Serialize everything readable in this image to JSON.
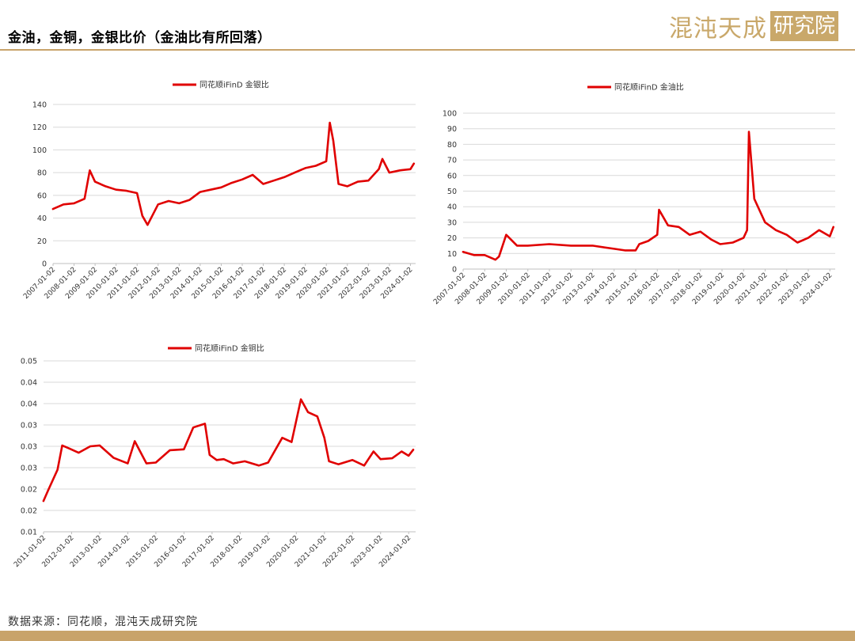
{
  "header": {
    "title": "金油，金铜，金银比价（金油比有所回落）",
    "logo_text": "混沌天成",
    "logo_box_text": "研究院"
  },
  "footer": {
    "source": "数据来源：同花顺，混沌天成研究院"
  },
  "colors": {
    "series": "#e00000",
    "accent": "#c8a36a",
    "grid": "#d9d9d9"
  },
  "chart_data": [
    {
      "type": "line",
      "legend": "同花顺iFinD 金银比",
      "x_range": [
        "2007-01-02",
        "2024-04-01"
      ],
      "x_ticks": [
        "2007-01-02",
        "2008-01-02",
        "2009-01-02",
        "2010-01-02",
        "2011-01-02",
        "2012-01-02",
        "2013-01-02",
        "2014-01-02",
        "2015-01-02",
        "2016-01-02",
        "2017-01-02",
        "2018-01-02",
        "2019-01-02",
        "2020-01-02",
        "2021-01-02",
        "2022-01-02",
        "2023-01-02",
        "2024-01-02"
      ],
      "y_ticks": [
        "0",
        "20",
        "40",
        "60",
        "80",
        "100",
        "120",
        "140"
      ],
      "ylim": [
        0,
        140
      ],
      "grid": true,
      "x": [
        "2007-01",
        "2007-07",
        "2008-01",
        "2008-07",
        "2008-10",
        "2009-01",
        "2009-07",
        "2010-01",
        "2010-07",
        "2011-01",
        "2011-04",
        "2011-07",
        "2012-01",
        "2012-07",
        "2013-01",
        "2013-07",
        "2014-01",
        "2014-07",
        "2015-01",
        "2015-07",
        "2016-01",
        "2016-07",
        "2017-01",
        "2017-07",
        "2018-01",
        "2018-07",
        "2019-01",
        "2019-07",
        "2020-01",
        "2020-03",
        "2020-05",
        "2020-08",
        "2021-01",
        "2021-07",
        "2022-01",
        "2022-07",
        "2022-09",
        "2023-01",
        "2023-07",
        "2024-01",
        "2024-03"
      ],
      "values": [
        48,
        52,
        53,
        57,
        82,
        72,
        68,
        65,
        64,
        62,
        42,
        34,
        52,
        55,
        53,
        56,
        63,
        65,
        67,
        71,
        74,
        78,
        70,
        73,
        76,
        80,
        84,
        86,
        90,
        124,
        108,
        70,
        68,
        72,
        73,
        83,
        92,
        80,
        82,
        83,
        88
      ]
    },
    {
      "type": "line",
      "legend": "同花顺iFinD 金油比",
      "x_range": [
        "2007-01-02",
        "2024-04-01"
      ],
      "x_ticks": [
        "2007-01-02",
        "2008-01-02",
        "2009-01-02",
        "2010-01-02",
        "2011-01-02",
        "2012-01-02",
        "2013-01-02",
        "2014-01-02",
        "2015-01-02",
        "2016-01-02",
        "2017-01-02",
        "2018-01-02",
        "2019-01-02",
        "2020-01-02",
        "2021-01-02",
        "2022-01-02",
        "2023-01-02",
        "2024-01-02"
      ],
      "y_ticks": [
        "0",
        "10",
        "20",
        "30",
        "40",
        "50",
        "60",
        "70",
        "80",
        "90",
        "100"
      ],
      "ylim": [
        0,
        100
      ],
      "grid": true,
      "x": [
        "2007-01",
        "2007-07",
        "2008-01",
        "2008-07",
        "2008-09",
        "2009-01",
        "2009-07",
        "2010-01",
        "2011-01",
        "2012-01",
        "2013-01",
        "2014-01",
        "2014-07",
        "2015-01",
        "2015-03",
        "2015-08",
        "2016-01",
        "2016-02",
        "2016-07",
        "2017-01",
        "2017-07",
        "2018-01",
        "2018-07",
        "2018-12",
        "2019-07",
        "2020-01",
        "2020-03",
        "2020-04",
        "2020-07",
        "2021-01",
        "2021-07",
        "2022-01",
        "2022-07",
        "2023-01",
        "2023-07",
        "2024-01",
        "2024-03"
      ],
      "values": [
        11,
        9,
        9,
        6,
        8,
        22,
        15,
        15,
        16,
        15,
        15,
        13,
        12,
        12,
        16,
        18,
        22,
        38,
        28,
        27,
        22,
        24,
        19,
        16,
        17,
        20,
        25,
        88,
        45,
        30,
        25,
        22,
        17,
        20,
        25,
        21,
        27
      ]
    },
    {
      "type": "line",
      "legend": "同花顺iFinD 金铜比",
      "x_range": [
        "2011-01-02",
        "2024-04-01"
      ],
      "x_ticks": [
        "2011-01-02",
        "2012-01-02",
        "2013-01-02",
        "2014-01-02",
        "2015-01-02",
        "2016-01-02",
        "2017-01-02",
        "2018-01-02",
        "2019-01-02",
        "2020-01-02",
        "2021-01-02",
        "2022-01-02",
        "2023-01-02",
        "2024-01-02"
      ],
      "y_ticks": [
        "0.01",
        "0.02",
        "0.02",
        "0.03",
        "0.03",
        "0.03",
        "0.04",
        "0.04",
        "0.05"
      ],
      "ylim": [
        0.01,
        0.05
      ],
      "grid": true,
      "x": [
        "2011-01",
        "2011-03",
        "2011-07",
        "2011-09",
        "2011-12",
        "2012-04",
        "2012-09",
        "2013-01",
        "2013-07",
        "2014-01",
        "2014-04",
        "2014-09",
        "2015-01",
        "2015-07",
        "2016-01",
        "2016-05",
        "2016-10",
        "2016-12",
        "2017-03",
        "2017-06",
        "2017-10",
        "2018-03",
        "2018-09",
        "2019-01",
        "2019-07",
        "2019-11",
        "2020-03",
        "2020-06",
        "2020-10",
        "2021-01",
        "2021-03",
        "2021-07",
        "2022-01",
        "2022-06",
        "2022-10",
        "2023-01",
        "2023-06",
        "2023-10",
        "2024-01",
        "2024-03"
      ],
      "values": [
        0.0172,
        0.0197,
        0.0245,
        0.0302,
        0.0295,
        0.0285,
        0.03,
        0.0302,
        0.0273,
        0.026,
        0.0312,
        0.026,
        0.0262,
        0.0291,
        0.0293,
        0.0344,
        0.0353,
        0.028,
        0.0268,
        0.027,
        0.026,
        0.0265,
        0.0255,
        0.0262,
        0.032,
        0.031,
        0.041,
        0.038,
        0.037,
        0.032,
        0.0265,
        0.0258,
        0.0268,
        0.0255,
        0.0288,
        0.027,
        0.0272,
        0.0288,
        0.0278,
        0.0292
      ]
    }
  ]
}
